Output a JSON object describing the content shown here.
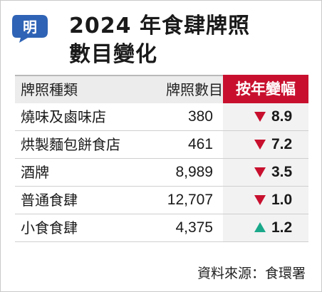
{
  "logo": {
    "char": "明"
  },
  "title": {
    "line1": "2024 年食肆牌照",
    "line2": "數目變化"
  },
  "columns": {
    "type": "牌照種類",
    "count": "牌照數目",
    "change": "按年變幅"
  },
  "source": "資料來源：食環署",
  "colors": {
    "accent_red": "#c8102e",
    "up_green": "#1aa88a",
    "header_gray": "#ececec",
    "logo_blue": "#2f63b5"
  },
  "chart_data": {
    "type": "table",
    "title": "2024 年食肆牌照數目變化",
    "columns": [
      "牌照種類",
      "牌照數目",
      "按年變幅"
    ],
    "rows": [
      {
        "type": "燒味及鹵味店",
        "count": "380",
        "change": "8.9",
        "direction": "down"
      },
      {
        "type": "烘製麵包餅食店",
        "count": "461",
        "change": "7.2",
        "direction": "down"
      },
      {
        "type": "酒牌",
        "count": "8,989",
        "change": "3.5",
        "direction": "down"
      },
      {
        "type": "普通食肆",
        "count": "12,707",
        "change": "1.0",
        "direction": "down"
      },
      {
        "type": "小食食肆",
        "count": "4,375",
        "change": "1.2",
        "direction": "up"
      }
    ]
  }
}
